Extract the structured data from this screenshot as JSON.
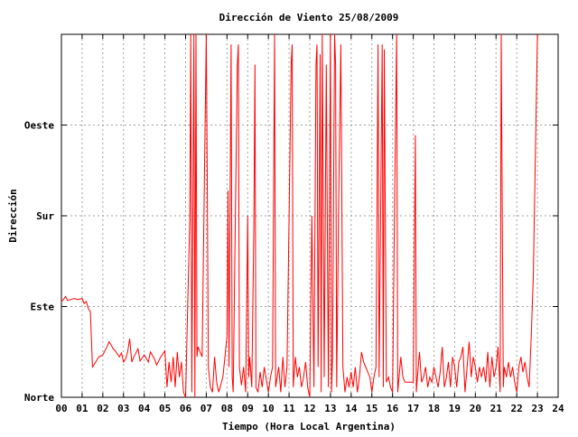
{
  "chart_data": {
    "type": "line",
    "title": "Dirección de Viento 25/08/2009",
    "xlabel": "Tiempo (Hora Local Argentina)",
    "ylabel": "Dirección",
    "xlim": [
      0,
      24
    ],
    "ylim": [
      0,
      360
    ],
    "x_ticks": [
      {
        "value": 0,
        "label": "00"
      },
      {
        "value": 1,
        "label": "01"
      },
      {
        "value": 2,
        "label": "02"
      },
      {
        "value": 3,
        "label": "03"
      },
      {
        "value": 4,
        "label": "04"
      },
      {
        "value": 5,
        "label": "05"
      },
      {
        "value": 6,
        "label": "06"
      },
      {
        "value": 7,
        "label": "07"
      },
      {
        "value": 8,
        "label": "08"
      },
      {
        "value": 9,
        "label": "09"
      },
      {
        "value": 10,
        "label": "10"
      },
      {
        "value": 11,
        "label": "11"
      },
      {
        "value": 12,
        "label": "12"
      },
      {
        "value": 13,
        "label": "13"
      },
      {
        "value": 14,
        "label": "14"
      },
      {
        "value": 15,
        "label": "15"
      },
      {
        "value": 16,
        "label": "16"
      },
      {
        "value": 17,
        "label": "17"
      },
      {
        "value": 18,
        "label": "18"
      },
      {
        "value": 19,
        "label": "19"
      },
      {
        "value": 20,
        "label": "20"
      },
      {
        "value": 21,
        "label": "21"
      },
      {
        "value": 22,
        "label": "22"
      },
      {
        "value": 23,
        "label": "23"
      },
      {
        "value": 24,
        "label": "24"
      }
    ],
    "y_ticks": [
      {
        "value": 0,
        "label": "Norte"
      },
      {
        "value": 90,
        "label": "Este"
      },
      {
        "value": 180,
        "label": "Sur"
      },
      {
        "value": 270,
        "label": "Oeste"
      }
    ],
    "grid": true,
    "colors": {
      "series": "#ff0000",
      "grid": "#a0a0a0",
      "axis": "#000000"
    },
    "series": [
      {
        "values": [
          [
            0.0,
            95
          ],
          [
            0.1,
            97
          ],
          [
            0.2,
            100
          ],
          [
            0.3,
            96
          ],
          [
            0.45,
            97
          ],
          [
            0.6,
            98
          ],
          [
            0.8,
            97
          ],
          [
            1.0,
            98
          ],
          [
            1.1,
            93
          ],
          [
            1.2,
            95
          ],
          [
            1.3,
            88
          ],
          [
            1.4,
            85
          ],
          [
            1.5,
            30
          ],
          [
            1.6,
            33
          ],
          [
            1.8,
            40
          ],
          [
            2.0,
            42
          ],
          [
            2.2,
            50
          ],
          [
            2.3,
            55
          ],
          [
            2.4,
            52
          ],
          [
            2.5,
            48
          ],
          [
            2.6,
            46
          ],
          [
            2.8,
            40
          ],
          [
            2.9,
            44
          ],
          [
            3.0,
            35
          ],
          [
            3.1,
            38
          ],
          [
            3.2,
            45
          ],
          [
            3.3,
            58
          ],
          [
            3.4,
            35
          ],
          [
            3.5,
            40
          ],
          [
            3.7,
            48
          ],
          [
            3.8,
            36
          ],
          [
            4.0,
            42
          ],
          [
            4.2,
            35
          ],
          [
            4.3,
            45
          ],
          [
            4.5,
            38
          ],
          [
            4.6,
            32
          ],
          [
            4.8,
            40
          ],
          [
            5.0,
            46
          ],
          [
            5.1,
            10
          ],
          [
            5.2,
            35
          ],
          [
            5.3,
            15
          ],
          [
            5.4,
            40
          ],
          [
            5.5,
            10
          ],
          [
            5.6,
            45
          ],
          [
            5.7,
            20
          ],
          [
            5.8,
            35
          ],
          [
            5.9,
            5
          ],
          [
            6.0,
            0
          ],
          [
            6.1,
            90
          ],
          [
            6.2,
            175
          ],
          [
            6.25,
            360
          ],
          [
            6.3,
            5
          ],
          [
            6.4,
            360
          ],
          [
            6.45,
            0
          ],
          [
            6.5,
            360
          ],
          [
            6.55,
            40
          ],
          [
            6.6,
            50
          ],
          [
            6.8,
            40
          ],
          [
            7.0,
            360
          ],
          [
            7.05,
            200
          ],
          [
            7.1,
            30
          ],
          [
            7.2,
            10
          ],
          [
            7.3,
            5
          ],
          [
            7.4,
            40
          ],
          [
            7.5,
            15
          ],
          [
            7.6,
            5
          ],
          [
            7.8,
            20
          ],
          [
            8.0,
            60
          ],
          [
            8.05,
            205
          ],
          [
            8.1,
            30
          ],
          [
            8.2,
            350
          ],
          [
            8.25,
            20
          ],
          [
            8.3,
            5
          ],
          [
            8.4,
            170
          ],
          [
            8.5,
            330
          ],
          [
            8.55,
            350
          ],
          [
            8.6,
            30
          ],
          [
            8.7,
            12
          ],
          [
            8.8,
            30
          ],
          [
            8.9,
            5
          ],
          [
            9.0,
            180
          ],
          [
            9.05,
            20
          ],
          [
            9.1,
            40
          ],
          [
            9.2,
            10
          ],
          [
            9.3,
            170
          ],
          [
            9.35,
            330
          ],
          [
            9.4,
            10
          ],
          [
            9.5,
            5
          ],
          [
            9.6,
            25
          ],
          [
            9.7,
            10
          ],
          [
            9.8,
            30
          ],
          [
            10.0,
            5
          ],
          [
            10.1,
            20
          ],
          [
            10.2,
            30
          ],
          [
            10.3,
            360
          ],
          [
            10.35,
            10
          ],
          [
            10.5,
            30
          ],
          [
            10.6,
            5
          ],
          [
            10.7,
            40
          ],
          [
            10.8,
            10
          ],
          [
            10.9,
            30
          ],
          [
            11.0,
            180
          ],
          [
            11.1,
            330
          ],
          [
            11.15,
            350
          ],
          [
            11.2,
            10
          ],
          [
            11.3,
            40
          ],
          [
            11.4,
            20
          ],
          [
            11.5,
            30
          ],
          [
            11.6,
            10
          ],
          [
            11.7,
            20
          ],
          [
            11.8,
            35
          ],
          [
            11.9,
            10
          ],
          [
            12.0,
            0
          ],
          [
            12.1,
            180
          ],
          [
            12.2,
            10
          ],
          [
            12.3,
            330
          ],
          [
            12.35,
            350
          ],
          [
            12.4,
            30
          ],
          [
            12.5,
            340
          ],
          [
            12.55,
            5
          ],
          [
            12.6,
            360
          ],
          [
            12.7,
            20
          ],
          [
            12.8,
            330
          ],
          [
            12.9,
            10
          ],
          [
            13.0,
            360
          ],
          [
            13.05,
            5
          ],
          [
            13.1,
            40
          ],
          [
            13.2,
            360
          ],
          [
            13.25,
            330
          ],
          [
            13.3,
            10
          ],
          [
            13.4,
            200
          ],
          [
            13.5,
            350
          ],
          [
            13.6,
            30
          ],
          [
            13.7,
            5
          ],
          [
            13.8,
            20
          ],
          [
            13.9,
            10
          ],
          [
            14.0,
            25
          ],
          [
            14.1,
            10
          ],
          [
            14.2,
            30
          ],
          [
            14.3,
            5
          ],
          [
            14.4,
            20
          ],
          [
            14.5,
            45
          ],
          [
            14.6,
            35
          ],
          [
            14.7,
            30
          ],
          [
            14.8,
            25
          ],
          [
            14.9,
            20
          ],
          [
            15.0,
            5
          ],
          [
            15.1,
            20
          ],
          [
            15.2,
            30
          ],
          [
            15.3,
            350
          ],
          [
            15.35,
            20
          ],
          [
            15.5,
            350
          ],
          [
            15.55,
            10
          ],
          [
            15.6,
            345
          ],
          [
            15.7,
            15
          ],
          [
            15.8,
            20
          ],
          [
            15.9,
            10
          ],
          [
            16.0,
            5
          ],
          [
            16.1,
            200
          ],
          [
            16.2,
            360
          ],
          [
            16.25,
            5
          ],
          [
            16.4,
            40
          ],
          [
            16.5,
            20
          ],
          [
            16.6,
            15
          ],
          [
            16.8,
            15
          ],
          [
            17.0,
            15
          ],
          [
            17.1,
            260
          ],
          [
            17.15,
            5
          ],
          [
            17.2,
            20
          ],
          [
            17.3,
            45
          ],
          [
            17.4,
            15
          ],
          [
            17.5,
            20
          ],
          [
            17.6,
            30
          ],
          [
            17.7,
            10
          ],
          [
            17.8,
            20
          ],
          [
            17.9,
            15
          ],
          [
            18.0,
            30
          ],
          [
            18.1,
            20
          ],
          [
            18.2,
            10
          ],
          [
            18.3,
            25
          ],
          [
            18.4,
            50
          ],
          [
            18.5,
            10
          ],
          [
            18.6,
            20
          ],
          [
            18.7,
            35
          ],
          [
            18.8,
            10
          ],
          [
            18.9,
            40
          ],
          [
            19.0,
            30
          ],
          [
            19.1,
            10
          ],
          [
            19.2,
            35
          ],
          [
            19.3,
            40
          ],
          [
            19.4,
            50
          ],
          [
            19.5,
            5
          ],
          [
            19.6,
            30
          ],
          [
            19.7,
            55
          ],
          [
            19.8,
            20
          ],
          [
            19.9,
            40
          ],
          [
            20.0,
            30
          ],
          [
            20.1,
            15
          ],
          [
            20.2,
            30
          ],
          [
            20.3,
            20
          ],
          [
            20.4,
            30
          ],
          [
            20.5,
            15
          ],
          [
            20.6,
            45
          ],
          [
            20.7,
            10
          ],
          [
            20.8,
            40
          ],
          [
            20.9,
            20
          ],
          [
            21.0,
            30
          ],
          [
            21.1,
            50
          ],
          [
            21.2,
            5
          ],
          [
            21.25,
            360
          ],
          [
            21.3,
            190
          ],
          [
            21.35,
            10
          ],
          [
            21.4,
            30
          ],
          [
            21.5,
            20
          ],
          [
            21.6,
            35
          ],
          [
            21.7,
            20
          ],
          [
            21.8,
            30
          ],
          [
            21.9,
            15
          ],
          [
            22.0,
            5
          ],
          [
            22.1,
            30
          ],
          [
            22.2,
            40
          ],
          [
            22.3,
            25
          ],
          [
            22.4,
            35
          ],
          [
            22.5,
            20
          ],
          [
            22.6,
            10
          ],
          [
            22.7,
            60
          ],
          [
            22.8,
            120
          ],
          [
            22.9,
            240
          ],
          [
            23.0,
            360
          ]
        ]
      }
    ]
  }
}
